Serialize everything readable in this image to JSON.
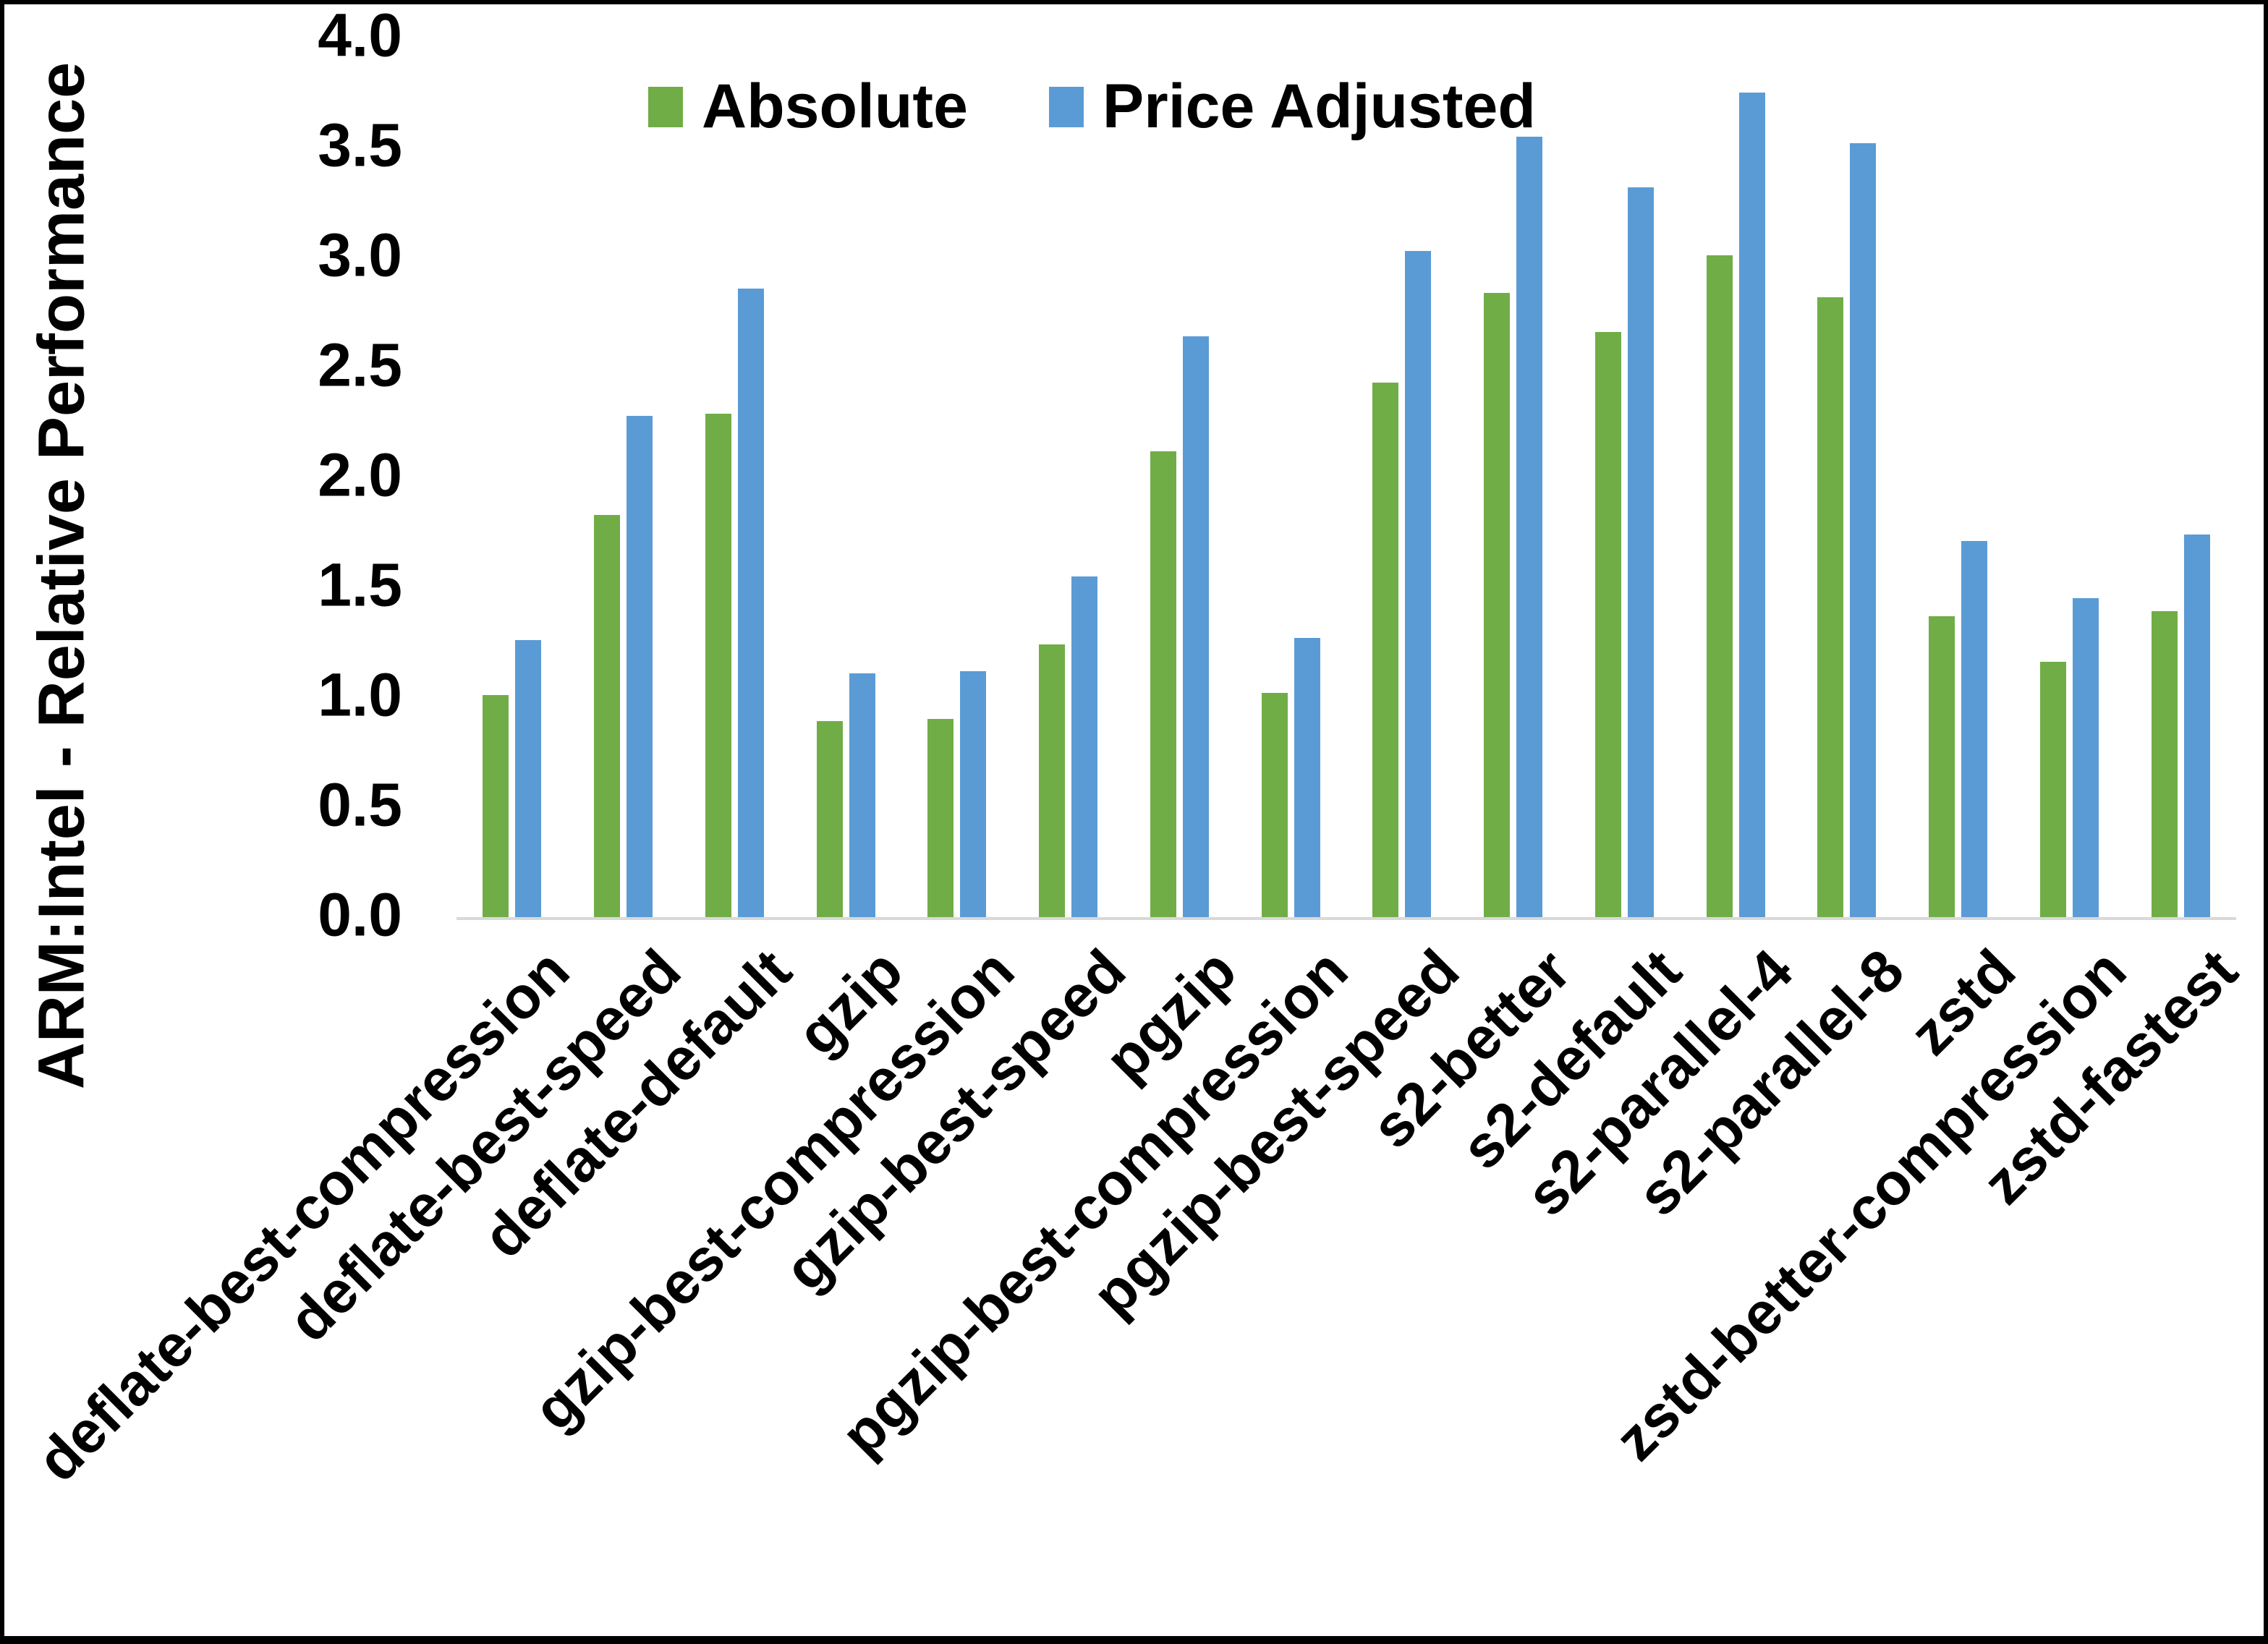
{
  "y_axis": {
    "title": "ARM:Intel - Relative Performance"
  },
  "legend": {
    "items": [
      {
        "label": "Absolute",
        "color": "#70AD47"
      },
      {
        "label": "Price Adjusted",
        "color": "#5B9BD5"
      }
    ]
  },
  "chart_data": {
    "type": "bar",
    "title": "",
    "xlabel": "",
    "ylabel": "ARM:Intel - Relative Performance",
    "ylim": [
      0.0,
      4.0
    ],
    "yticks": [
      "0.0",
      "0.5",
      "1.0",
      "1.5",
      "2.0",
      "2.5",
      "3.0",
      "3.5",
      "4.0"
    ],
    "grid": false,
    "legend_position": "top-center",
    "axis_line_color": "#D9D9D9",
    "text_color": "#000000",
    "background_color": "#FFFFFF",
    "frame_color": "#000000",
    "categories": [
      "deflate-best-compression",
      "deflate-best-speed",
      "deflate-default",
      "gzip",
      "gzip-best-compression",
      "gzip-best-speed",
      "pgzip",
      "pgzip-best-compression",
      "pgzip-best-speed",
      "s2-better",
      "s2-default",
      "s2-parallel-4",
      "s2-parallel-8",
      "zstd",
      "zstd-better-compression",
      "zstd-fastest"
    ],
    "series": [
      {
        "name": "Absolute",
        "color": "#70AD47",
        "values": [
          1.01,
          1.83,
          2.29,
          0.89,
          0.9,
          1.24,
          2.12,
          1.02,
          2.43,
          2.84,
          2.66,
          3.01,
          2.82,
          1.37,
          1.16,
          1.39
        ]
      },
      {
        "name": "Price Adjusted",
        "color": "#5B9BD5",
        "values": [
          1.26,
          2.28,
          2.86,
          1.11,
          1.12,
          1.55,
          2.64,
          1.27,
          3.03,
          3.55,
          3.32,
          3.75,
          3.52,
          1.71,
          1.45,
          1.74
        ]
      }
    ]
  }
}
